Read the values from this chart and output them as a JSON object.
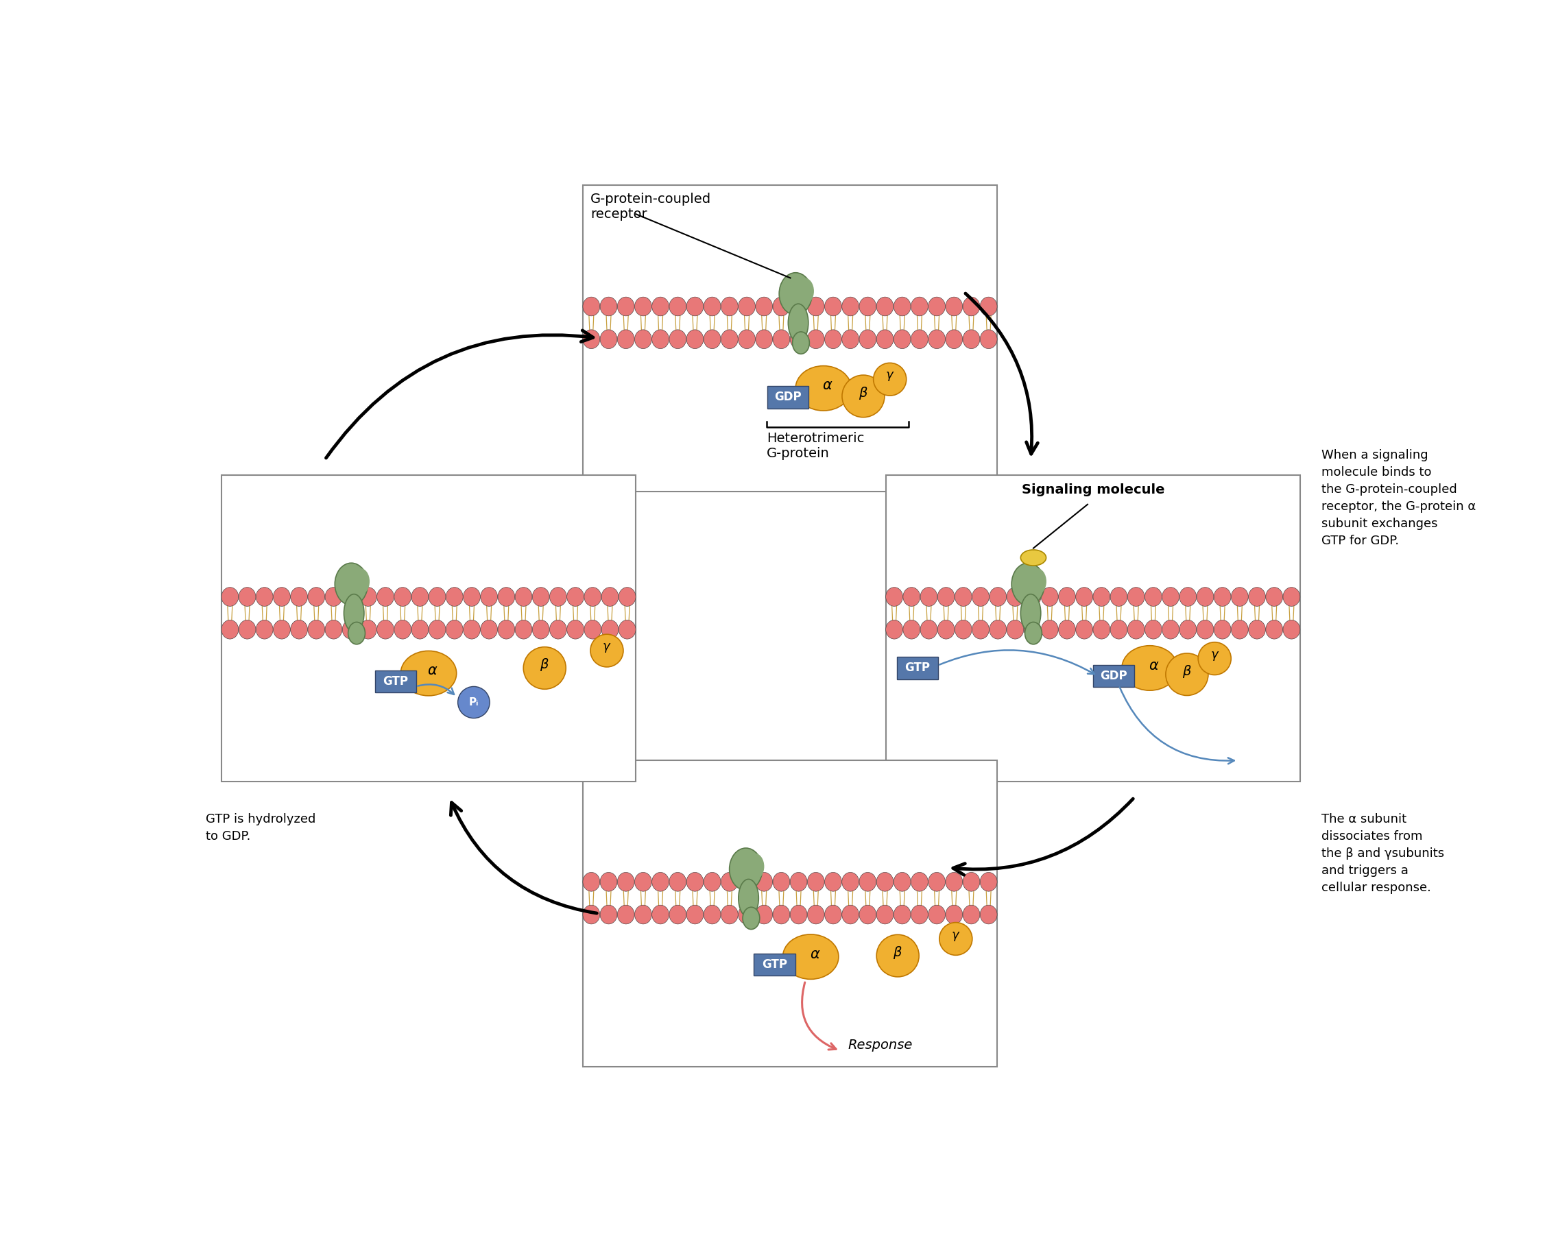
{
  "fig_width": 22.72,
  "fig_height": 18.0,
  "bg": "#ffffff",
  "cyto_color": "#f5d8b8",
  "ext_color": "#ffffff",
  "mem_head_color": "#e87878",
  "mem_head_edge": "#333333",
  "mem_tail_color": "#c8a040",
  "mem_band_color": "#d06050",
  "receptor_fill": "#8aaa78",
  "receptor_edge": "#5a7a4a",
  "alpha_fill": "#f0b030",
  "alpha_edge": "#c07800",
  "beta_fill": "#f0b030",
  "beta_edge": "#c07800",
  "gamma_fill": "#f0b030",
  "gamma_edge": "#c07800",
  "gdp_fill": "#5577aa",
  "gtp_fill": "#5577aa",
  "nuc_text": "#ffffff",
  "nuc_edge": "#334466",
  "pi_fill": "#6688cc",
  "pi_edge": "#334466",
  "sig_fill": "#e8c840",
  "sig_edge": "#aa8800",
  "box_edge": "#888888",
  "big_arrow": "#000000",
  "blue_arrow": "#5588bb",
  "resp_arrow": "#dd6666",
  "label_fs": 14,
  "annot_fs": 13,
  "text_top_right": "When a signaling\nmolecule binds to\nthe G-protein-coupled\nreceptor, the G-protein α\nsubunit exchanges\nGTP for GDP.",
  "text_bot_right": "The α subunit\ndissociates from\nthe β and γsubunits\nand triggers a\ncellular response.",
  "text_bot_left": "GTP is hydrolyzed\nto GDP.",
  "lbl_gpcr": "G-protein-coupled\nreceptor",
  "lbl_hetero": "Heterotrimeric\nG-protein",
  "lbl_signal": "Signaling molecule",
  "lbl_response": "Response",
  "lbl_pi": "Pᵢ"
}
